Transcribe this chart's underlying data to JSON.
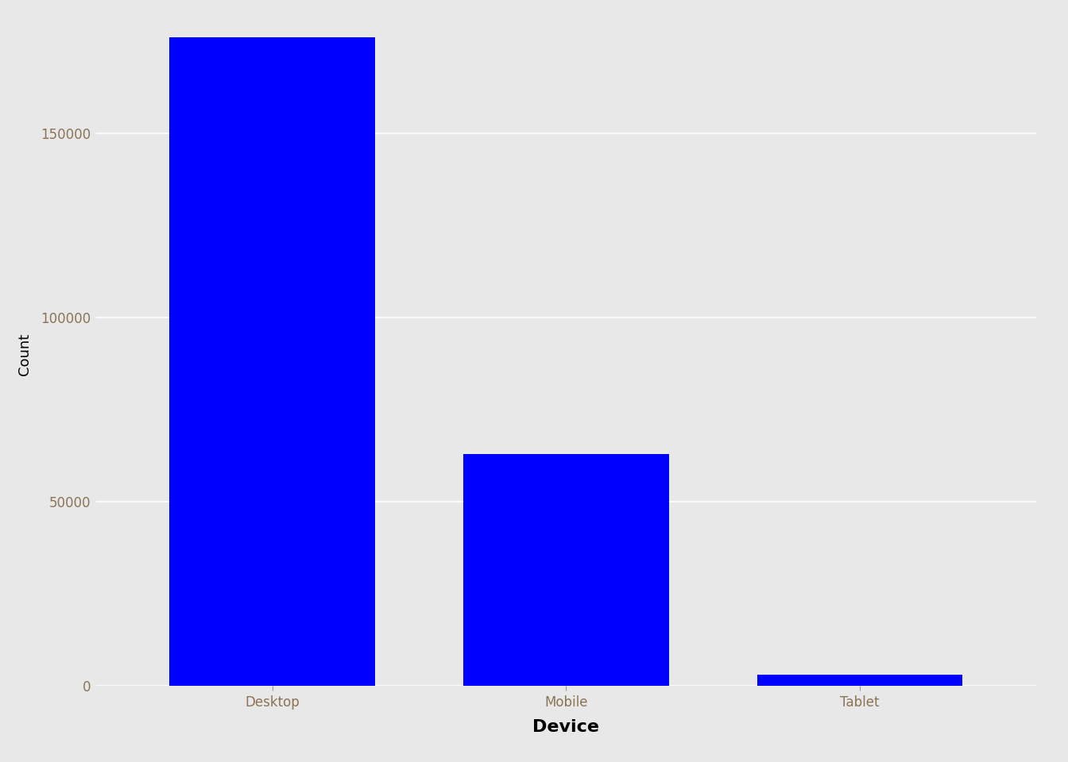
{
  "categories": [
    "Desktop",
    "Mobile",
    "Tablet"
  ],
  "values": [
    176000,
    63000,
    3000
  ],
  "bar_color": "#0000FF",
  "fig_background_color": "#E8E8E8",
  "panel_background": "#E8E8E8",
  "grid_color": "#FFFFFF",
  "xlabel": "Device",
  "ylabel": "Count",
  "xlabel_fontsize": 16,
  "ylabel_fontsize": 13,
  "tick_label_fontsize": 12,
  "tick_color": "#8B7355",
  "ylim": [
    0,
    180000
  ],
  "yticks": [
    0,
    50000,
    100000,
    150000
  ],
  "bar_width": 0.7
}
